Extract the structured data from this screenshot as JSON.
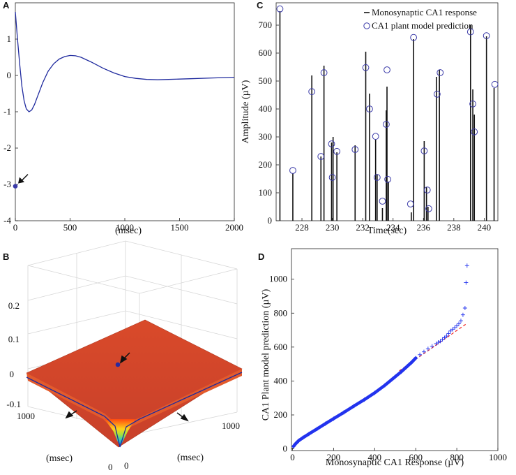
{
  "colors": {
    "line": "#1f2a9e",
    "marker": "#3a3aa8",
    "scatter": "#2233ee",
    "fit": "#ee2222",
    "surface_top": "#d64a2a",
    "grid": "#d9d9d9"
  },
  "chart_data": [
    {
      "panel": "A",
      "type": "line",
      "title": "",
      "xlabel": "(msec)",
      "ylabel": "",
      "xlim": [
        0,
        2000
      ],
      "ylim": [
        -4,
        2
      ],
      "xticks": [
        "0",
        "500",
        "1000",
        "1500",
        "2000"
      ],
      "yticks": [
        "-4",
        "-3",
        "-2",
        "-1",
        "0",
        "1"
      ],
      "series": [
        {
          "name": "kernel",
          "x": [
            0,
            20,
            40,
            60,
            80,
            100,
            125,
            150,
            175,
            200,
            250,
            300,
            350,
            400,
            450,
            500,
            550,
            600,
            700,
            800,
            900,
            1000,
            1100,
            1200,
            1300,
            1400,
            1500,
            1600,
            1800,
            2000
          ],
          "y": [
            1.75,
            1.0,
            0.3,
            -0.3,
            -0.7,
            -0.92,
            -1.0,
            -0.95,
            -0.8,
            -0.6,
            -0.2,
            0.12,
            0.32,
            0.45,
            0.52,
            0.55,
            0.54,
            0.5,
            0.36,
            0.2,
            0.07,
            -0.03,
            -0.08,
            -0.11,
            -0.12,
            -0.11,
            -0.1,
            -0.09,
            -0.07,
            -0.05
          ]
        }
      ],
      "annotations": [
        {
          "type": "point",
          "x": 0,
          "y": -3.05,
          "label": "arrow"
        }
      ]
    },
    {
      "panel": "B",
      "type": "surface",
      "title": "",
      "zticks": [
        "-0.1",
        "0",
        "0.1",
        "0.2"
      ],
      "x_ticks": [
        "0",
        "1000"
      ],
      "y_ticks": [
        "0",
        "1000"
      ],
      "xlabel": "(msec)",
      "ylabel": "(msec)",
      "annotations": [
        {
          "type": "point",
          "label": "arrow"
        },
        {
          "type": "edge",
          "label": "arrow"
        },
        {
          "type": "edge",
          "label": "arrow"
        }
      ]
    },
    {
      "panel": "C",
      "type": "stem",
      "title": "",
      "xlabel": "Time(sec)",
      "ylabel": "Amplitude (µV)",
      "xlim": [
        226.3,
        240.9
      ],
      "ylim": [
        0,
        780
      ],
      "xticks": [
        "228",
        "230",
        "232",
        "234",
        "236",
        "238",
        "240"
      ],
      "yticks": [
        "0",
        "100",
        "200",
        "300",
        "400",
        "500",
        "600",
        "700"
      ],
      "legend": {
        "position": "top-right",
        "entries": [
          "Monosynaptic CA1 response",
          "CA1 plant model prediction"
        ]
      },
      "series": [
        {
          "name": "Monosynaptic CA1 response",
          "x": [
            226.55,
            227.4,
            228.65,
            229.25,
            229.45,
            229.95,
            230.05,
            230.3,
            231.5,
            232.2,
            232.45,
            232.85,
            232.95,
            233.3,
            233.55,
            233.6,
            233.7,
            235.2,
            235.35,
            236.05,
            236.2,
            236.3,
            236.85,
            237.05,
            239.1,
            239.25,
            239.35,
            240.15,
            240.65
          ],
          "y": [
            750,
            170,
            520,
            230,
            555,
            280,
            300,
            245,
            270,
            605,
            455,
            290,
            165,
            45,
            395,
            480,
            140,
            30,
            650,
            285,
            120,
            50,
            515,
            540,
            700,
            470,
            380,
            660,
            475
          ]
        },
        {
          "name": "CA1 plant model prediction",
          "x": [
            226.55,
            227.4,
            228.65,
            229.25,
            229.45,
            229.95,
            230.0,
            230.3,
            231.5,
            232.2,
            232.45,
            232.85,
            232.95,
            233.3,
            233.55,
            233.6,
            233.65,
            235.15,
            235.35,
            236.05,
            236.25,
            236.35,
            236.9,
            237.1,
            239.1,
            239.25,
            239.35,
            240.15,
            240.7
          ],
          "y": [
            758,
            180,
            462,
            230,
            530,
            275,
            155,
            248,
            255,
            548,
            400,
            302,
            155,
            70,
            345,
            540,
            148,
            60,
            656,
            250,
            110,
            43,
            453,
            530,
            676,
            418,
            318,
            662,
            488
          ]
        }
      ]
    },
    {
      "panel": "D",
      "type": "scatter",
      "title": "",
      "xlabel": "Monosynaptic CA1 Response (µV)",
      "ylabel": "CA1 Plant model prediction (µV)",
      "xlim": [
        -5,
        1000
      ],
      "ylim": [
        -10,
        1180
      ],
      "xticks": [
        "0",
        "200",
        "400",
        "600",
        "800",
        "1000"
      ],
      "yticks": [
        "0",
        "200",
        "400",
        "600",
        "800",
        "1000"
      ],
      "series": [
        {
          "name": "quantiles",
          "marker": "+",
          "x": [
            5,
            15,
            30,
            50,
            80,
            120,
            160,
            200,
            250,
            300,
            350,
            400,
            450,
            500,
            530,
            560,
            580,
            600,
            620,
            640,
            660,
            680,
            700,
            710,
            720,
            730,
            740,
            750,
            760,
            770,
            780,
            790,
            800,
            810,
            820,
            830,
            840,
            845,
            850
          ],
          "y": [
            15,
            30,
            48,
            65,
            88,
            118,
            148,
            178,
            215,
            253,
            290,
            330,
            375,
            425,
            455,
            488,
            510,
            535,
            555,
            572,
            590,
            605,
            620,
            628,
            635,
            645,
            655,
            665,
            680,
            695,
            705,
            715,
            725,
            738,
            755,
            790,
            830,
            980,
            1080
          ]
        },
        {
          "name": "reference",
          "type": "dashed-line",
          "x": [
            520,
            850
          ],
          "y": [
            460,
            740
          ]
        }
      ]
    }
  ]
}
